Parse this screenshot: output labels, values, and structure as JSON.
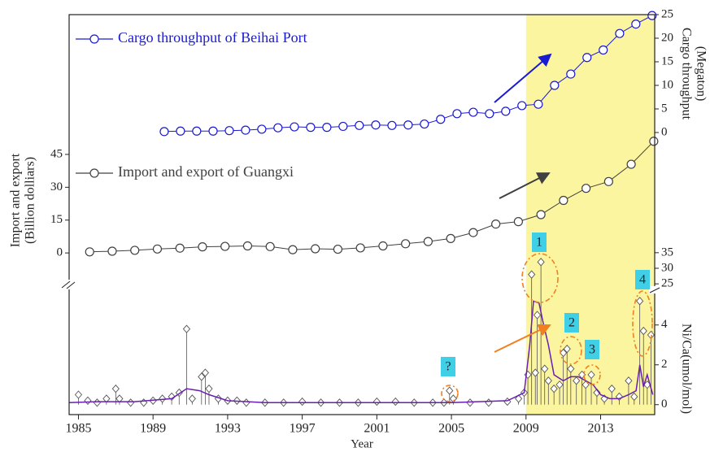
{
  "chart_data": [
    {
      "type": "line",
      "xlim": [
        1984.5,
        2015.9
      ],
      "y2lim": [
        0,
        25
      ],
      "y2ticks": [
        0,
        5,
        10,
        15,
        20,
        25
      ],
      "y2label": [
        "Cargo throughput",
        "(Megaton)"
      ],
      "legend": "upper left",
      "series": [
        {
          "name": "Cargo throughput of Beihai Port",
          "color": "#1a1ad0",
          "axis": "y2",
          "marker": "circle",
          "style": "line",
          "x": [
            1989.6,
            1990.47,
            1991.34,
            1992.22,
            1993.09,
            1993.96,
            1994.83,
            1995.7,
            1996.58,
            1997.45,
            1998.32,
            1999.19,
            2000.06,
            2000.94,
            2001.81,
            2002.68,
            2003.55,
            2004.42,
            2005.3,
            2006.17,
            2007.04,
            2007.91,
            2008.78,
            2009.66,
            2010.53,
            2011.4,
            2012.27,
            2013.14,
            2014.02,
            2014.89,
            2015.76
          ],
          "values": [
            0.2,
            0.3,
            0.3,
            0.3,
            0.4,
            0.5,
            0.7,
            1.0,
            1.2,
            1.1,
            1.1,
            1.3,
            1.5,
            1.6,
            1.5,
            1.6,
            1.8,
            2.8,
            4.0,
            4.3,
            4.0,
            4.5,
            5.7,
            6.0,
            10.0,
            12.4,
            15.9,
            17.5,
            21.0,
            23.0,
            24.8
          ]
        }
      ]
    },
    {
      "type": "line",
      "xlim": [
        1984.5,
        2015.9
      ],
      "ylim": [
        -7,
        55
      ],
      "yticks": [
        0,
        15,
        30,
        45
      ],
      "ylabel": [
        "Import and export",
        "(Billion dolliars)"
      ],
      "legend": "upper left",
      "series": [
        {
          "name": "Import and export of Guangxi",
          "color": "#404040",
          "marker": "circle",
          "style": "line",
          "x": [
            1985.6,
            1986.81,
            1988.02,
            1989.23,
            1990.44,
            1991.65,
            1992.86,
            1994.07,
            1995.28,
            1996.49,
            1997.7,
            1998.91,
            2000.12,
            2001.33,
            2002.54,
            2003.75,
            2004.96,
            2006.17,
            2007.38,
            2008.59,
            2009.8,
            2011.01,
            2012.22,
            2013.43,
            2014.64,
            2015.85
          ],
          "values": [
            0.5,
            0.8,
            1.2,
            1.8,
            2.2,
            2.8,
            3.0,
            3.2,
            2.9,
            1.5,
            1.9,
            1.7,
            2.3,
            3.2,
            4.2,
            5.2,
            6.6,
            9.3,
            13.2,
            14.3,
            17.5,
            24,
            29.5,
            32.6,
            40.5,
            51
          ]
        }
      ]
    },
    {
      "type": "line",
      "xlim": [
        1984.5,
        2015.9
      ],
      "xticks": [
        1985,
        1989,
        1993,
        1997,
        2001,
        2005,
        2009,
        2013
      ],
      "xlabel": "Year",
      "ylim": [
        -0.5,
        36
      ],
      "ybreak": [
        5.5,
        24
      ],
      "yaxis_side": "right",
      "yticks": [
        0,
        2,
        4,
        25,
        30,
        35
      ],
      "ylabel": [
        "Ni/Ca(umol/mol)"
      ],
      "highlight": {
        "from": 2009,
        "color": "#fbf5a0"
      },
      "annotations": [
        "1",
        "2",
        "3",
        "4",
        "?"
      ],
      "series": [
        {
          "color": "#555555",
          "marker": "diamond",
          "style": "stem",
          "x": [
            1985.0,
            1985.5,
            1986.0,
            1986.5,
            1987.0,
            1987.2,
            1987.8,
            1988.5,
            1989.0,
            1989.5,
            1990.0,
            1990.4,
            1990.8,
            1991.1,
            1991.6,
            1991.8,
            1992.0,
            1992.5,
            1993.0,
            1993.5,
            1994.0,
            1995.0,
            1996.0,
            1997.0,
            1998.0,
            1999.0,
            2000.0,
            2001.0,
            2002.0,
            2003.0,
            2004.0,
            2004.6,
            2004.9,
            2005.1,
            2006.0,
            2007.0,
            2008.0,
            2008.6,
            2008.9,
            2009.1,
            2009.3,
            2009.5,
            2009.6,
            2009.8,
            2010.0,
            2010.2,
            2010.5,
            2010.8,
            2011.0,
            2011.2,
            2011.4,
            2011.7,
            2012.0,
            2012.2,
            2012.5,
            2012.8,
            2013.2,
            2013.6,
            2014.0,
            2014.5,
            2014.8,
            2015.1,
            2015.3,
            2015.5,
            2015.7
          ],
          "values": [
            0.5,
            0.2,
            0.1,
            0.3,
            0.8,
            0.3,
            0.1,
            0.1,
            0.2,
            0.3,
            0.4,
            0.6,
            3.8,
            0.3,
            1.4,
            1.6,
            0.8,
            0.3,
            0.2,
            0.2,
            0.1,
            0.1,
            0.1,
            0.15,
            0.1,
            0.1,
            0.1,
            0.15,
            0.15,
            0.1,
            0.1,
            0.1,
            0.7,
            0.3,
            0.1,
            0.1,
            0.15,
            0.3,
            0.6,
            1.5,
            28,
            1.6,
            4.5,
            32,
            1.8,
            1.2,
            0.8,
            1.0,
            2.6,
            2.8,
            1.8,
            1.2,
            1.5,
            1.0,
            1.5,
            0.6,
            0.3,
            0.8,
            0.4,
            1.2,
            0.4,
            5.2,
            3.7,
            1.0,
            3.5
          ]
        },
        {
          "color": "#6a1fb0",
          "marker": "none",
          "style": "line",
          "x": [
            1984.5,
            1986,
            1988,
            1990,
            1990.8,
            1991.5,
            1992,
            1993,
            1995,
            2000,
            2005,
            2008,
            2008.9,
            2009.2,
            2009.4,
            2009.7,
            2009.9,
            2010.2,
            2010.5,
            2011,
            2011.4,
            2011.8,
            2012.2,
            2012.6,
            2013,
            2013.5,
            2014,
            2014.5,
            2014.9,
            2015.1,
            2015.3,
            2015.5,
            2015.8
          ],
          "values": [
            0.1,
            0.15,
            0.15,
            0.3,
            0.8,
            0.7,
            0.5,
            0.2,
            0.1,
            0.1,
            0.1,
            0.2,
            0.6,
            3.0,
            5.2,
            5.1,
            4.2,
            3.0,
            1.5,
            1.2,
            1.4,
            1.4,
            1.2,
            1.0,
            0.5,
            0.3,
            0.3,
            0.5,
            0.7,
            2.0,
            0.9,
            1.5,
            0.5
          ]
        }
      ]
    }
  ]
}
